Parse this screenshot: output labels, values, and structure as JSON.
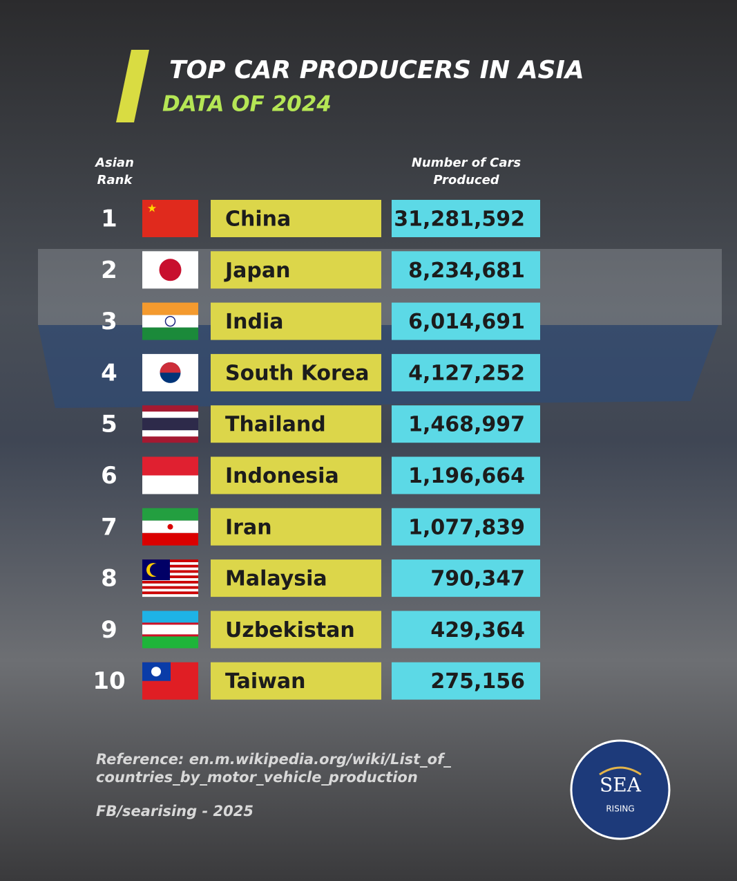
{
  "header": {
    "title": "TOP CAR PRODUCERS IN ASIA",
    "subtitle": "DATA OF 2024"
  },
  "table": {
    "columns": [
      "Asian Rank",
      "Number of Cars Produced"
    ],
    "rows": [
      [
        "1",
        "China",
        "31,281,592"
      ],
      [
        "2",
        "Japan",
        "8,234,681"
      ],
      [
        "3",
        "India",
        "6,014,691"
      ],
      [
        "4",
        "South Korea",
        "4,127,252"
      ],
      [
        "5",
        "Thailand",
        "1,468,997"
      ],
      [
        "6",
        "Indonesia",
        "1,196,664"
      ],
      [
        "7",
        "Iran",
        "1,077,839"
      ],
      [
        "8",
        "Malaysia",
        "790,347"
      ],
      [
        "9",
        "Uzbekistan",
        "429,364"
      ],
      [
        "10",
        "Taiwan",
        "275,156"
      ]
    ]
  },
  "footer": {
    "reference": [
      "Reference: en.m.wikipedia.org/wiki/List_of_",
      "countries_by_motor_vehicle_production"
    ],
    "credit": "FB/searising - 2025"
  },
  "logo": {
    "name": "SEA",
    "tag": "RISING"
  }
}
